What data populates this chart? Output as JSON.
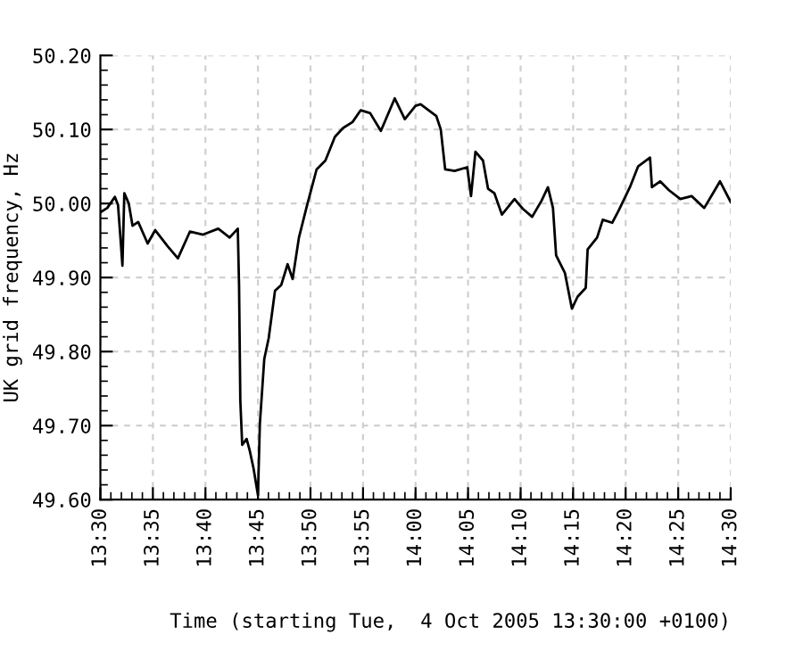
{
  "chart_data": {
    "type": "line",
    "xlabel": "Time (starting Tue,  4 Oct 2005 13:30:00 +0100)",
    "ylabel": "UK grid frequency, Hz",
    "xlim": [
      13.5,
      14.5
    ],
    "ylim": [
      49.6,
      50.2
    ],
    "xticks": [
      {
        "value": 13.5,
        "label": "13:30"
      },
      {
        "value": 13.5833,
        "label": "13:35"
      },
      {
        "value": 13.6667,
        "label": "13:40"
      },
      {
        "value": 13.75,
        "label": "13:45"
      },
      {
        "value": 13.8333,
        "label": "13:50"
      },
      {
        "value": 13.9167,
        "label": "13:55"
      },
      {
        "value": 14.0,
        "label": "14:00"
      },
      {
        "value": 14.0833,
        "label": "14:05"
      },
      {
        "value": 14.1667,
        "label": "14:10"
      },
      {
        "value": 14.25,
        "label": "14:15"
      },
      {
        "value": 14.3333,
        "label": "14:20"
      },
      {
        "value": 14.4167,
        "label": "14:25"
      },
      {
        "value": 14.5,
        "label": "14:30"
      }
    ],
    "yticks": [
      {
        "value": 49.6,
        "label": "49.60"
      },
      {
        "value": 49.7,
        "label": "49.70"
      },
      {
        "value": 49.8,
        "label": "49.80"
      },
      {
        "value": 49.9,
        "label": "49.90"
      },
      {
        "value": 50.0,
        "label": "50.00"
      },
      {
        "value": 50.1,
        "label": "50.10"
      },
      {
        "value": 50.2,
        "label": "50.20"
      }
    ],
    "grid": true,
    "marker": "none",
    "line_style": "solid",
    "series": [
      {
        "color": "#000000",
        "x": [
          13.5,
          13.511,
          13.523,
          13.528,
          13.533,
          13.535,
          13.538,
          13.545,
          13.551,
          13.56,
          13.575,
          13.587,
          13.607,
          13.623,
          13.642,
          13.663,
          13.687,
          13.705,
          13.718,
          13.72,
          13.722,
          13.725,
          13.732,
          13.737,
          13.743,
          13.75,
          13.753,
          13.76,
          13.767,
          13.777,
          13.787,
          13.797,
          13.805,
          13.815,
          13.828,
          13.843,
          13.857,
          13.872,
          13.885,
          13.9,
          13.913,
          13.928,
          13.945,
          13.967,
          13.983,
          14.0,
          14.008,
          14.033,
          14.04,
          14.047,
          14.062,
          14.082,
          14.088,
          14.095,
          14.107,
          14.115,
          14.125,
          14.137,
          14.157,
          14.17,
          14.185,
          14.2,
          14.21,
          14.218,
          14.223,
          14.237,
          14.248,
          14.257,
          14.27,
          14.273,
          14.288,
          14.297,
          14.312,
          14.322,
          14.34,
          14.353,
          14.372,
          14.375,
          14.388,
          14.402,
          14.42,
          14.438,
          14.458,
          14.472,
          14.483,
          14.5
        ],
        "values": [
          49.988,
          49.994,
          50.009,
          49.998,
          49.94,
          49.916,
          50.014,
          50.0,
          49.97,
          49.975,
          49.946,
          49.964,
          49.942,
          49.926,
          49.962,
          49.958,
          49.966,
          49.954,
          49.966,
          49.89,
          49.734,
          49.674,
          49.682,
          49.666,
          49.642,
          49.606,
          49.702,
          49.79,
          49.818,
          49.882,
          49.89,
          49.918,
          49.898,
          49.954,
          49.998,
          50.046,
          50.058,
          50.09,
          50.102,
          50.11,
          50.126,
          50.122,
          50.098,
          50.142,
          50.114,
          50.132,
          50.134,
          50.118,
          50.1,
          50.046,
          50.044,
          50.049,
          50.01,
          50.07,
          50.058,
          50.02,
          50.014,
          49.985,
          50.006,
          49.993,
          49.982,
          50.004,
          50.022,
          49.994,
          49.93,
          49.906,
          49.858,
          49.874,
          49.886,
          49.938,
          49.954,
          49.978,
          49.974,
          49.99,
          50.022,
          50.05,
          50.062,
          50.022,
          50.03,
          50.018,
          50.006,
          50.01,
          49.994,
          50.014,
          50.03,
          50.002
        ]
      }
    ]
  }
}
